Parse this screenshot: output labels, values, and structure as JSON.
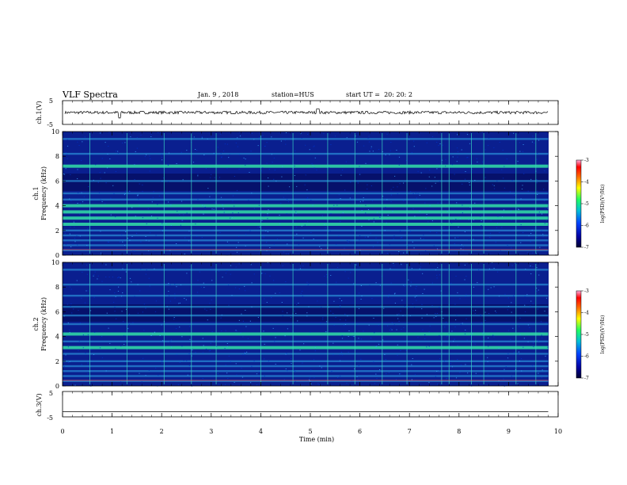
{
  "header": {
    "title": "VLF Spectra",
    "date": "Jan. 9 , 2018",
    "station": "station=HUS",
    "start_ut": "start UT =  20: 20: 2"
  },
  "colors": {
    "spectrogram_colormap": [
      "#000033",
      "#0000a0",
      "#0044ff",
      "#1cb5d8",
      "#3bd6b0",
      "#20ff60",
      "#ffff00",
      "#ff8000",
      "#ff0000",
      "#ff99cc"
    ],
    "background_noise": "#0a1f8f",
    "emission_line": "#2fdcc0",
    "trace_color": "#000000"
  },
  "chart_data": [
    {
      "type": "line",
      "panel": "ch.1 waveform",
      "ylabel": "ch.1(V)",
      "ylim": [
        -5,
        5
      ],
      "yticks": [
        "5",
        "-5"
      ],
      "xlim": [
        0,
        10
      ],
      "series": [
        {
          "x": [
            0,
            10
          ],
          "y": [
            0,
            0
          ]
        }
      ]
    },
    {
      "type": "heatmap",
      "panel": "ch.1 spectrogram",
      "ylabel_top": "ch.1",
      "ylabel": "Frequency (kHz)",
      "ylim": [
        0,
        10
      ],
      "yticks": [
        "0",
        "2",
        "4",
        "6",
        "8",
        "10"
      ],
      "xlim": [
        0,
        10
      ],
      "emission_bands_khz": [
        0.4,
        0.8,
        1.2,
        1.6,
        2.0,
        2.5,
        3.0,
        3.5,
        4.0,
        4.5,
        5.0,
        6.0,
        7.2,
        8.2,
        9.4
      ],
      "strong_bands_khz": [
        2.5,
        3.0,
        3.5,
        4.0,
        7.2
      ],
      "vertical_impulses_min": [
        0.55,
        1.3,
        2.05,
        2.6,
        3.1,
        4.0,
        4.65,
        5.35,
        5.9,
        6.45,
        6.95,
        7.65,
        7.8,
        8.25,
        8.5,
        9.15,
        9.55
      ],
      "colorbar": {
        "label": "log(PSD)(V²/Hz)",
        "range": [
          -7,
          -3
        ],
        "ticks": [
          "-3",
          "-4",
          "-5",
          "-6",
          "-7"
        ]
      }
    },
    {
      "type": "heatmap",
      "panel": "ch.2 spectrogram",
      "ylabel_top": "ch.2",
      "ylabel": "Frequency (kHz)",
      "ylim": [
        0,
        10
      ],
      "yticks": [
        "0",
        "2",
        "4",
        "6",
        "8",
        "10"
      ],
      "xlim": [
        0,
        10
      ],
      "emission_bands_khz": [
        0.4,
        0.8,
        1.2,
        1.6,
        2.0,
        2.6,
        3.1,
        3.6,
        4.2,
        5.0,
        5.7,
        6.4,
        7.3,
        8.2,
        9.4
      ],
      "strong_bands_khz": [
        3.1,
        4.2
      ],
      "vertical_impulses_min": [
        0.55,
        1.3,
        2.05,
        2.6,
        3.1,
        4.0,
        4.65,
        5.35,
        5.9,
        6.45,
        6.95,
        7.65,
        7.8,
        8.25,
        8.5,
        9.15,
        9.55
      ],
      "colorbar": {
        "label": "log(PSD)(V²/Hz)",
        "range": [
          -7,
          -3
        ],
        "ticks": [
          "-3",
          "-4",
          "-5",
          "-6",
          "-7"
        ]
      }
    },
    {
      "type": "line",
      "panel": "ch.3 waveform",
      "ylabel": "ch.3(V)",
      "ylim": [
        -5,
        5
      ],
      "yticks": [
        "5",
        "-5"
      ],
      "xlim": [
        0,
        10
      ],
      "series": [
        {
          "x": [
            0,
            9.8
          ],
          "y": [
            -3,
            -3
          ]
        }
      ]
    }
  ],
  "xaxis": {
    "label": "Time (min)",
    "ticks": [
      "0",
      "1",
      "2",
      "3",
      "4",
      "5",
      "6",
      "7",
      "8",
      "9",
      "10"
    ],
    "range": [
      0,
      10
    ],
    "data_end_min": 9.8
  }
}
